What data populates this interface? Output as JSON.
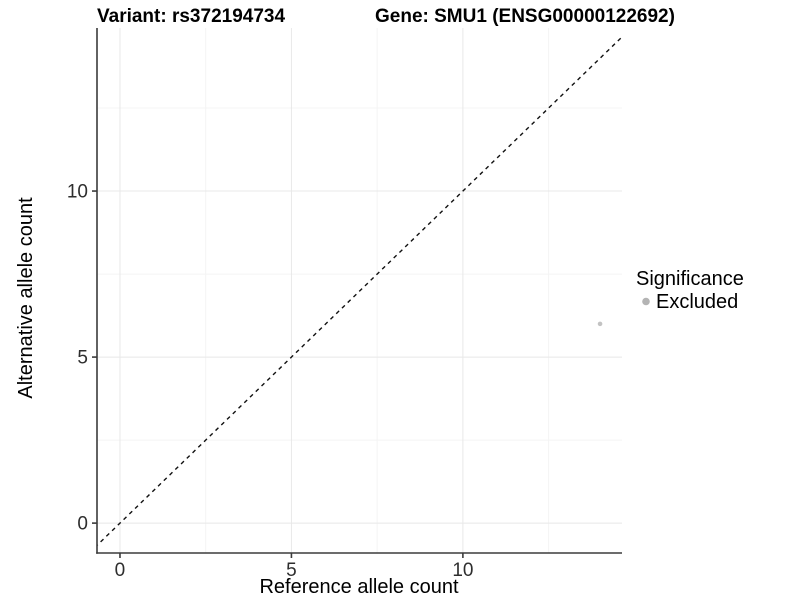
{
  "titles": {
    "variant": "Variant: rs372194734",
    "gene": "Gene: SMU1 (ENSG00000122692)"
  },
  "chart_data": {
    "type": "scatter",
    "title": "Variant: rs372194734    Gene: SMU1 (ENSG00000122692)",
    "xlabel": "Reference allele count",
    "ylabel": "Alternative allele count",
    "xlim": [
      -0.67,
      14.64
    ],
    "ylim": [
      -0.9,
      14.91
    ],
    "xtick_values": [
      0,
      5,
      10
    ],
    "xtick_labels": [
      "0",
      "5",
      "10"
    ],
    "ytick_values": [
      0,
      5,
      10
    ],
    "ytick_labels": [
      "0",
      "5",
      "10"
    ],
    "minor_xtick_values": [
      2.5,
      7.5,
      12.5
    ],
    "minor_ytick_values": [
      2.5,
      7.5,
      12.5
    ],
    "grid": "major and minor gridlines, light grey on white panel",
    "points": [
      {
        "x": 14,
        "y": 6,
        "significance": "Excluded"
      }
    ],
    "reference_line": {
      "kind": "identity y = x",
      "style": "dashed",
      "color": "#111111"
    },
    "legend": {
      "title": "Significance",
      "position": "right",
      "entries": [
        {
          "label": "Excluded",
          "color": "#b4b4b4"
        }
      ]
    },
    "colors": {
      "point": "#c3c3c3",
      "grid_major": "#e8e8e8",
      "grid_minor": "#f4f4f4",
      "axis_line": "#3b3b3b",
      "tick_text": "#2e2e2e",
      "background": "#ffffff"
    }
  }
}
